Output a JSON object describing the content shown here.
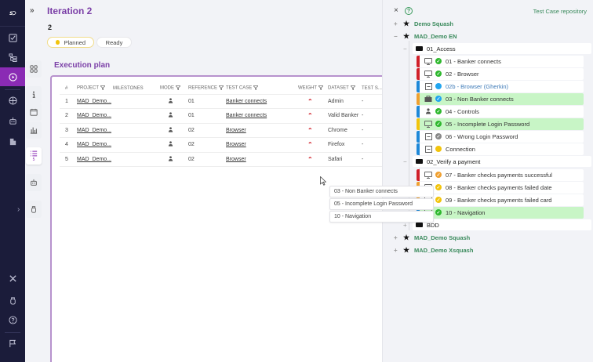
{
  "nav": {
    "logo": "S",
    "items": [
      {
        "icon": "checkbox-icon",
        "label": "Requirements"
      },
      {
        "icon": "hierarchy-icon",
        "label": "Test cases"
      },
      {
        "icon": "play-circle-icon",
        "label": "Campaigns",
        "active": true
      },
      {
        "icon": "globe-icon",
        "label": "Home"
      },
      {
        "icon": "robot-icon",
        "label": "Automation"
      },
      {
        "icon": "building-icon",
        "label": "Bugtracker"
      },
      {
        "icon": "tools-icon",
        "label": "Administration"
      },
      {
        "icon": "bug-icon",
        "label": "Plugins"
      },
      {
        "icon": "help-icon",
        "label": "Help"
      },
      {
        "icon": "flag-icon",
        "label": "News"
      }
    ]
  },
  "secondary": {
    "collapse_icon": "»",
    "buttons": [
      {
        "icon": "dashboard-icon"
      },
      {
        "icon": "info-icon"
      },
      {
        "icon": "calendar-icon"
      },
      {
        "icon": "chart-icon"
      },
      {
        "icon": "list-icon",
        "count": "5",
        "active": true
      },
      {
        "icon": "robot-icon"
      },
      {
        "icon": "bug-icon"
      }
    ]
  },
  "header": {
    "title": "Iteration 2",
    "reference": "2",
    "statuses": [
      {
        "label": "Planned",
        "selected": true,
        "color": "#f2c40c"
      },
      {
        "label": "Ready",
        "selected": false
      }
    ]
  },
  "execution_plan": {
    "title": "Execution plan",
    "columns": [
      "#",
      "PROJECT",
      "MILESTONES",
      "MODE",
      "REFERENCE",
      "TEST CASE",
      "WEIGHT",
      "DATASET",
      "TEST S..."
    ],
    "rows": [
      {
        "num": "1",
        "project": "MAD_Demo...",
        "milestones": "",
        "mode": "manual",
        "reference": "01",
        "test_case": "Banker connects",
        "weight": "high",
        "dataset": "Admin",
        "suite": "-"
      },
      {
        "num": "2",
        "project": "MAD_Demo...",
        "milestones": "",
        "mode": "manual",
        "reference": "01",
        "test_case": "Banker connects",
        "weight": "high",
        "dataset": "Valid Banker",
        "suite": "-"
      },
      {
        "num": "3",
        "project": "MAD_Demo...",
        "milestones": "",
        "mode": "manual",
        "reference": "02",
        "test_case": "Browser",
        "weight": "high",
        "dataset": "Chrome",
        "suite": "-"
      },
      {
        "num": "4",
        "project": "MAD_Demo...",
        "milestones": "",
        "mode": "manual",
        "reference": "02",
        "test_case": "Browser",
        "weight": "high",
        "dataset": "Firefox",
        "suite": "-"
      },
      {
        "num": "5",
        "project": "MAD_Demo...",
        "milestones": "",
        "mode": "manual",
        "reference": "02",
        "test_case": "Browser",
        "weight": "high",
        "dataset": "Safari",
        "suite": "-"
      }
    ]
  },
  "drag_items": [
    "03 - Non Banker connects",
    "05 - Incomplete Login Password",
    "10 - Navigation"
  ],
  "repository": {
    "title": "Test Case repository",
    "close_icon": "×",
    "help_icon": "?",
    "projects": [
      {
        "name": "Demo Squash",
        "expanded": false
      },
      {
        "name": "MAD_Demo EN",
        "expanded": true
      },
      {
        "name": "MAD_Demo Squash",
        "expanded": false
      },
      {
        "name": "MAD_Demo Xsquash",
        "expanded": false
      }
    ],
    "folders": [
      {
        "name": "01_Access",
        "expanded": true
      },
      {
        "name": "02_Verify a payment",
        "expanded": true
      },
      {
        "name": "BDD",
        "expanded": false
      }
    ],
    "test_cases": [
      {
        "label": "01 - Banker connects",
        "bar": "#d0202a",
        "type": "monitor",
        "status": "#2eb82e",
        "status_glyph": "✓",
        "highlight": false,
        "text_color": "#333"
      },
      {
        "label": "02 - Browser",
        "bar": "#d0202a",
        "type": "monitor",
        "status": "#2eb82e",
        "status_glyph": "✓",
        "highlight": false,
        "text_color": "#333"
      },
      {
        "label": "02b - Browser (Gherkin)",
        "bar": "#1e88d8",
        "type": "script",
        "status": "#21a5ef",
        "status_glyph": "",
        "highlight": false,
        "text_color": "#3d7ab8"
      },
      {
        "label": "03 - Non Banker connects",
        "bar": "#f0a030",
        "type": "stack",
        "status": "#21a5ef",
        "status_glyph": "✓",
        "highlight": true,
        "text_color": "#333"
      },
      {
        "label": "04 - Controls",
        "bar": "#1e88d8",
        "type": "user",
        "status": "#2eb82e",
        "status_glyph": "✓",
        "highlight": false,
        "text_color": "#333"
      },
      {
        "label": "05 - Incomplete Login Password",
        "bar": "#f2c40c",
        "type": "monitor",
        "status": "#2eb82e",
        "status_glyph": "✓",
        "highlight": true,
        "text_color": "#333"
      },
      {
        "label": "06 - Wrong Login Password",
        "bar": "#1e88d8",
        "type": "script",
        "status": "#888888",
        "status_glyph": "✓",
        "highlight": false,
        "text_color": "#333"
      },
      {
        "label": "Connection",
        "bar": "#1e88d8",
        "type": "script",
        "status": "#f2c40c",
        "status_glyph": "",
        "highlight": false,
        "text_color": "#333"
      },
      {
        "label": "07 - Banker checks payments successful",
        "bar": "#d0202a",
        "type": "monitor",
        "status": "#f0a030",
        "status_glyph": "✓",
        "highlight": false,
        "text_color": "#333"
      },
      {
        "label": "08 - Banker checks payments failed date",
        "bar": "#f0a030",
        "type": "monitor",
        "status": "#f2c40c",
        "status_glyph": "✓",
        "highlight": false,
        "text_color": "#333"
      },
      {
        "label": "09 - Banker checks payments failed card",
        "bar": "#f0a030",
        "type": "monitor",
        "status": "#f2c40c",
        "status_glyph": "✓",
        "highlight": false,
        "text_color": "#333"
      },
      {
        "label": "10 - Navigation",
        "bar": "#1e88d8",
        "type": "monitor",
        "status": "#2eb82e",
        "status_glyph": "✓",
        "highlight": true,
        "text_color": "#333"
      }
    ]
  },
  "colors": {
    "accent": "#7b3fa7",
    "nav_bg": "#1b1c3a",
    "nav_active": "#8a2bb4",
    "repo_green": "#3a8a5c",
    "weight_red": "#d0202a"
  }
}
